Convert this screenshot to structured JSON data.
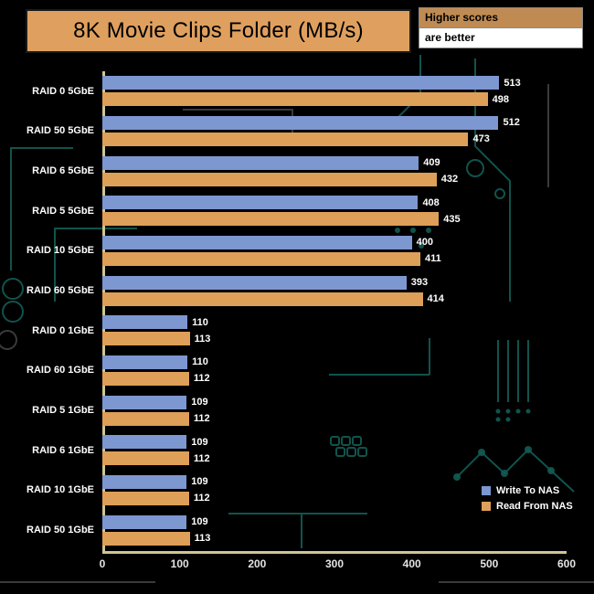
{
  "title": "8K Movie Clips Folder (MB/s)",
  "note": {
    "line1": "Higher scores",
    "line2": "are better"
  },
  "legend": {
    "write_label": "Write To NAS",
    "read_label": "Read From NAS"
  },
  "colors": {
    "background": "#000000",
    "write_bar": "#7d97d0",
    "read_bar": "#de9f58",
    "title_bg": "#dfa05f",
    "note_bg": "#c08b52",
    "axis": "#cfc593",
    "label_text": "#ffffff",
    "tick_text": "#e3e3e3",
    "circuit": "#135c55"
  },
  "chart_data": {
    "type": "bar",
    "orientation": "horizontal",
    "title": "8K Movie Clips Folder (MB/s)",
    "categories": [
      "RAID 0 5GbE",
      "RAID 50 5GbE",
      "RAID 6 5GbE",
      "RAID 5 5GbE",
      "RAID 10 5GbE",
      "RAID 60 5GbE",
      "RAID 0 1GbE",
      "RAID 60 1GbE",
      "RAID 5 1GbE",
      "RAID 6 1GbE",
      "RAID 10 1GbE",
      "RAID 50 1GbE"
    ],
    "series": [
      {
        "name": "Write To NAS",
        "key": "write",
        "values": [
          513,
          512,
          409,
          408,
          400,
          393,
          110,
          110,
          109,
          109,
          109,
          109
        ]
      },
      {
        "name": "Read From NAS",
        "key": "read",
        "values": [
          498,
          473,
          432,
          435,
          411,
          414,
          113,
          112,
          112,
          112,
          112,
          113
        ]
      }
    ],
    "xlim": [
      0,
      600
    ],
    "xticks": [
      0,
      100,
      200,
      300,
      400,
      500,
      600
    ],
    "grid": false,
    "legend_position": "bottom-right"
  }
}
